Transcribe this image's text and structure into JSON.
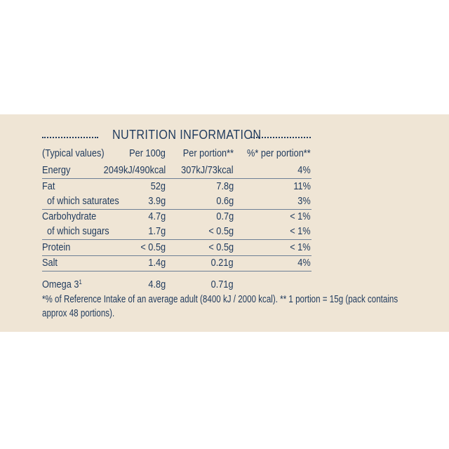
{
  "title": "NUTRITION INFORMATION",
  "table": {
    "header": [
      "(Typical values)",
      "Per 100g",
      "Per portion**",
      "%* per portion**"
    ],
    "rows": [
      {
        "cells": [
          "Energy",
          "2049kJ/490kcal",
          "307kJ/73kcal",
          "4%"
        ]
      },
      {
        "cells": [
          "Fat",
          "52g",
          "7.8g",
          "11%"
        ]
      },
      {
        "cells": [
          "of which saturates",
          "3.9g",
          "0.6g",
          "3%"
        ],
        "indent": true
      },
      {
        "cells": [
          "Carbohydrate",
          "4.7g",
          "0.7g",
          "< 1%"
        ]
      },
      {
        "cells": [
          "of which sugars",
          "1.7g",
          "< 0.5g",
          "< 1%"
        ],
        "indent": true
      },
      {
        "cells": [
          "Protein",
          "< 0.5g",
          "< 0.5g",
          "< 1%"
        ]
      },
      {
        "cells": [
          "Salt",
          "1.4g",
          "0.21g",
          "4%"
        ]
      }
    ],
    "extra_row": {
      "label": "Omega 3",
      "footnote_ref": "1",
      "cells": [
        "4.8g",
        "0.71g"
      ]
    }
  },
  "footnote": [
    "*% of Reference Intake of an average adult (8400 kJ / 2000 kcal). ** 1 portion = 15g (pack contains",
    "approx 48 portions)."
  ]
}
